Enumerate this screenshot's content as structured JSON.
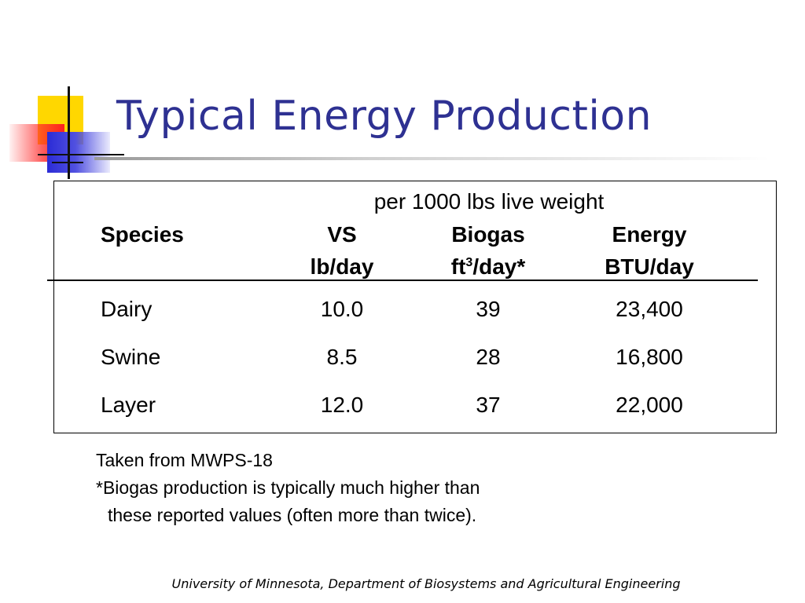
{
  "title": "Typical Energy Production",
  "table": {
    "super_header": "per 1000 lbs live weight",
    "columns": [
      {
        "name": "Species",
        "unit": ""
      },
      {
        "name": "VS",
        "unit": "lb/day"
      },
      {
        "name": "Biogas",
        "unit_prefix": "ft",
        "unit_sup": "3",
        "unit_suffix": "/day*"
      },
      {
        "name": "Energy",
        "unit": "BTU/day"
      }
    ],
    "rows": [
      {
        "species": "Dairy",
        "vs": "10.0",
        "biogas": "39",
        "energy": "23,400"
      },
      {
        "species": "Swine",
        "vs": "8.5",
        "biogas": "28",
        "energy": "16,800"
      },
      {
        "species": "Layer",
        "vs": "12.0",
        "biogas": "37",
        "energy": "22,000"
      }
    ]
  },
  "notes": {
    "source": "Taken from MWPS-18",
    "footnote_line1": "*Biogas production is typically much higher than",
    "footnote_line2": "these reported values (often more than twice)."
  },
  "footer": "University of Minnesota, Department of Biosystems and Agricultural Engineering",
  "colors": {
    "title": "#2e3192",
    "logo_yellow": "#ffd700",
    "logo_red": "#ff2020",
    "logo_blue": "#2b2bd6"
  }
}
